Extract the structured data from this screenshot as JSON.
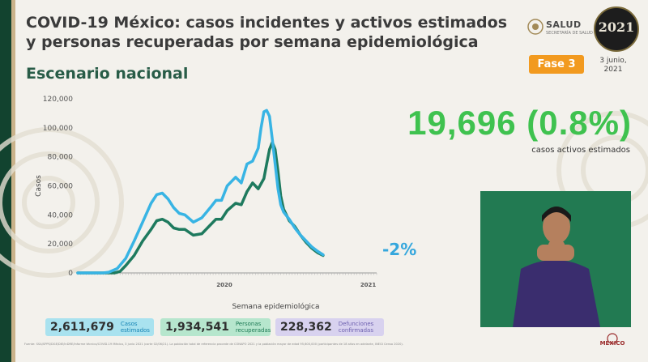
{
  "header": {
    "title": "COVID-19 México: casos incidentes y activos estimados y personas recuperadas por semana epidemiológica",
    "subtitle": "Escenario nacional",
    "brand": "SALUD",
    "brand_sub": "SECRETARÍA DE SALUD",
    "phase": "Fase 3",
    "date": "3 junio, 2021",
    "logo_year": "2021"
  },
  "highlight": {
    "value": "19,696 (0.8%)",
    "caption": "casos activos estimados",
    "change": "-2%"
  },
  "colors": {
    "estimated_cases": "#38b4e4",
    "active_cases": "#1e7a5e",
    "highlight": "#3fc24f",
    "phase": "#f29a1f"
  },
  "chart_data": {
    "type": "line",
    "ylabel": "Casos",
    "xlabel": "Semana epidemiológica",
    "ylim": [
      0,
      120000
    ],
    "y_ticks": [
      0,
      20000,
      40000,
      60000,
      80000,
      100000,
      120000
    ],
    "y_tick_labels": [
      "0",
      "20,000",
      "40,000",
      "60,000",
      "80,000",
      "100,000",
      "120,000"
    ],
    "x_tick_labels": [
      {
        "week": 53,
        "label": "2020"
      },
      {
        "week": 104,
        "label": "2021"
      }
    ],
    "week_range": [
      1,
      107
    ],
    "grid": false,
    "legend": "none",
    "series": [
      {
        "key": "estimated",
        "points": [
          [
            1,
            0
          ],
          [
            10,
            0
          ],
          [
            12,
            500
          ],
          [
            15,
            3000
          ],
          [
            18,
            10000
          ],
          [
            21,
            22000
          ],
          [
            24,
            35000
          ],
          [
            27,
            48000
          ],
          [
            29,
            54000
          ],
          [
            31,
            55000
          ],
          [
            33,
            51000
          ],
          [
            35,
            45000
          ],
          [
            37,
            41000
          ],
          [
            39,
            40000
          ],
          [
            42,
            35000
          ],
          [
            45,
            38000
          ],
          [
            48,
            45000
          ],
          [
            50,
            50000
          ],
          [
            52,
            50000
          ],
          [
            54,
            60000
          ],
          [
            57,
            66000
          ],
          [
            59,
            62000
          ],
          [
            61,
            75000
          ],
          [
            63,
            77000
          ],
          [
            65,
            86000
          ],
          [
            66,
            100000
          ],
          [
            67,
            111000
          ],
          [
            68,
            112000
          ],
          [
            69,
            108000
          ],
          [
            70,
            92000
          ],
          [
            71,
            75000
          ],
          [
            72,
            58000
          ],
          [
            73,
            47000
          ],
          [
            74,
            42000
          ],
          [
            76,
            37000
          ],
          [
            78,
            31000
          ],
          [
            80,
            26000
          ],
          [
            82,
            22000
          ],
          [
            84,
            18000
          ],
          [
            86,
            15000
          ],
          [
            88,
            12500
          ]
        ]
      },
      {
        "key": "active",
        "points": [
          [
            1,
            0
          ],
          [
            14,
            0
          ],
          [
            16,
            1000
          ],
          [
            18,
            5000
          ],
          [
            21,
            12000
          ],
          [
            24,
            22000
          ],
          [
            27,
            30000
          ],
          [
            29,
            36000
          ],
          [
            31,
            37000
          ],
          [
            33,
            35000
          ],
          [
            35,
            31000
          ],
          [
            37,
            30000
          ],
          [
            39,
            30000
          ],
          [
            42,
            26000
          ],
          [
            45,
            27000
          ],
          [
            48,
            33000
          ],
          [
            50,
            37000
          ],
          [
            52,
            37000
          ],
          [
            54,
            43000
          ],
          [
            57,
            48000
          ],
          [
            59,
            47000
          ],
          [
            61,
            56000
          ],
          [
            63,
            62000
          ],
          [
            65,
            58000
          ],
          [
            67,
            65000
          ],
          [
            68,
            75000
          ],
          [
            69,
            85000
          ],
          [
            70,
            90000
          ],
          [
            71,
            85000
          ],
          [
            72,
            70000
          ],
          [
            73,
            53000
          ],
          [
            74,
            44000
          ],
          [
            76,
            36000
          ],
          [
            78,
            32000
          ],
          [
            80,
            26000
          ],
          [
            82,
            21000
          ],
          [
            84,
            17000
          ],
          [
            86,
            14000
          ],
          [
            88,
            12000
          ]
        ]
      }
    ]
  },
  "stats": [
    {
      "value": "2,611,679",
      "label_1": "Casos",
      "label_2": "estimados"
    },
    {
      "value": "1,934,541",
      "label_1": "Personas",
      "label_2": "recuperadas"
    },
    {
      "value": "228,362",
      "label_1": "Defunciones",
      "label_2": "confirmadas"
    }
  ],
  "footer": {
    "source": "Fuente: SSA/SPPS/DGE/DIE/InDRE/Informe técnico/COVID-19 México, 3 junio 2021 (corte 02/06/21). La población total de referencia procede de CONAPO 2021 y la población mayor de edad 95,600,000 (participantes de 18 años en adelante, INEGI Censo 2020).",
    "logo_text": "MÉXICO"
  }
}
